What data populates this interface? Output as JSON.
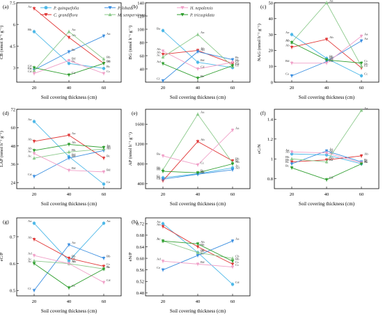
{
  "series": [
    {
      "name": "P. quinquefolia",
      "color": "#4db8e8",
      "marker": "circle"
    },
    {
      "name": "C. grandiflora",
      "color": "#e03535",
      "marker": "triangle-down"
    },
    {
      "name": "P. lobata",
      "color": "#3a8ee0",
      "marker": "triangle-down"
    },
    {
      "name": "M. sempervirens",
      "color": "#8bc98b",
      "marker": "triangle-up"
    },
    {
      "name": "H. nepalensis",
      "color": "#f0a0c8",
      "marker": "triangle-down"
    },
    {
      "name": "P. tricuspidata",
      "color": "#2e9e2e",
      "marker": "triangle-down"
    }
  ],
  "chart_data": [
    {
      "type": "line",
      "panel": "(a)",
      "ylabel": "CB (nmol h⁻¹ g⁻¹)",
      "xlabel": "Soil covering thickness (cm)",
      "x": [
        20,
        40,
        60
      ],
      "ylim": [
        2.0,
        7.5
      ],
      "yticks": [
        3.0,
        4.5,
        6.0,
        7.5
      ],
      "series": [
        {
          "values": [
            5.5,
            3.3,
            2.95
          ],
          "labels": [
            "Bb",
            "Bc",
            "Bc"
          ]
        },
        {
          "values": [
            7.1,
            5.1,
            3.3
          ],
          "labels": [
            "Aa",
            "Ab",
            "Bb"
          ]
        },
        {
          "values": [
            2.85,
            4.1,
            5.2
          ],
          "labels": [
            "Cc",
            "Bc",
            "Aa"
          ]
        },
        {
          "values": [
            2.8,
            5.5,
            3.6
          ],
          "labels": [
            "Cd",
            "Aa",
            "Bb"
          ]
        },
        {
          "values": [
            2.6,
            3.5,
            2.6
          ],
          "labels": [
            "Cd",
            "Bd",
            "Cc"
          ]
        },
        {
          "values": [
            3.0,
            2.5,
            3.3
          ],
          "labels": [
            "Cd",
            "Ca",
            "Bd"
          ]
        }
      ]
    },
    {
      "type": "line",
      "panel": "(b)",
      "ylabel": "BG (nmol h⁻¹ g⁻¹)",
      "xlabel": "Soil covering thickness (cm)",
      "x": [
        20,
        40,
        60
      ],
      "ylim": [
        20,
        140
      ],
      "yticks": [
        40,
        60,
        80,
        100,
        120,
        140
      ],
      "series": [
        {
          "values": [
            98,
            50,
            42
          ],
          "labels": [
            "Ba",
            "Bd",
            "Cc"
          ]
        },
        {
          "values": [
            62,
            68,
            48
          ],
          "labels": [
            "Ab",
            "Ab",
            "Cc"
          ]
        },
        {
          "values": [
            22,
            66,
            54
          ],
          "labels": [
            "Cf",
            "Ab",
            "Bc"
          ]
        },
        {
          "values": [
            58,
            92,
            44
          ],
          "labels": [
            "Ac",
            "Aa",
            "Cd"
          ]
        },
        {
          "values": [
            67,
            40,
            50
          ],
          "labels": [
            "Ab",
            "Cd",
            "Bb"
          ]
        },
        {
          "values": [
            48,
            26,
            45
          ],
          "labels": [
            "Ad",
            "Be",
            "Cc"
          ]
        }
      ]
    },
    {
      "type": "line",
      "panel": "(c)",
      "ylabel": "NAG (nmol h⁻¹ g⁻¹)",
      "xlabel": "Soil covering thickness (cm)",
      "x": [
        20,
        40,
        60
      ],
      "ylim": [
        0,
        50
      ],
      "yticks": [
        0,
        10,
        20,
        30,
        40,
        50
      ],
      "series": [
        {
          "values": [
            30,
            15,
            4
          ],
          "labels": [
            "Aa",
            "Bb",
            "Cc"
          ]
        },
        {
          "values": [
            22,
            27,
            9
          ],
          "labels": [
            "Ab",
            "Ab",
            "Cc"
          ]
        },
        {
          "values": [
            4,
            13,
            26
          ],
          "labels": [
            "Ce",
            "Bd",
            "Aa"
          ]
        },
        {
          "values": [
            25,
            50,
            10
          ],
          "labels": [
            "Ab",
            "Aa",
            "Bb"
          ]
        },
        {
          "values": [
            12,
            12,
            29
          ],
          "labels": [
            "Bd",
            "Bd",
            "Aa"
          ]
        },
        {
          "values": [
            25,
            14,
            12
          ],
          "labels": [
            "Ab",
            "Bb",
            "Cc"
          ]
        }
      ]
    },
    {
      "type": "line",
      "panel": "(d)",
      "ylabel": "LAP (nmol h⁻¹ g⁻¹)",
      "xlabel": "Soil covering thickness (cm)",
      "x": [
        20,
        40,
        60
      ],
      "ylim": [
        20,
        72
      ],
      "yticks": [
        24,
        36,
        48,
        60,
        72
      ],
      "series": [
        {
          "values": [
            64,
            41,
            23
          ],
          "labels": [
            "Aa",
            "Bd",
            "Ce"
          ]
        },
        {
          "values": [
            51,
            55,
            40
          ],
          "labels": [
            "Ab",
            "Aa",
            "Bc"
          ]
        },
        {
          "values": [
            28,
            40,
            45
          ],
          "labels": [
            "Cd",
            "Bd",
            "Ab"
          ]
        },
        {
          "values": [
            40,
            44,
            46
          ],
          "labels": [
            "Ac",
            "Bb",
            "Ab"
          ]
        },
        {
          "values": [
            43,
            32,
            31
          ],
          "labels": [
            "Ac",
            "Bd",
            "Bd"
          ]
        },
        {
          "values": [
            45,
            49,
            47
          ],
          "labels": [
            "Ab",
            "Ab",
            "Aa"
          ]
        }
      ]
    },
    {
      "type": "line",
      "panel": "(e)",
      "ylabel": "AP (nmol h⁻¹ g⁻¹)",
      "xlabel": "Soil covering thickness (cm)",
      "x": [
        20,
        40,
        60
      ],
      "ylim": [
        300,
        1900
      ],
      "yticks": [
        400,
        800,
        1200,
        1600
      ],
      "series": [
        {
          "values": [
            520,
            600,
            720
          ],
          "labels": [
            "Cc",
            "Bc",
            "Ac"
          ]
        },
        {
          "values": [
            460,
            1250,
            860
          ],
          "labels": [
            "Cd",
            "Ab",
            "Bb"
          ]
        },
        {
          "values": [
            490,
            590,
            680
          ],
          "labels": [
            "Be",
            "Bd",
            "Ad"
          ]
        },
        {
          "values": [
            680,
            1800,
            820
          ],
          "labels": [
            "Bb",
            "Aa",
            "Bc"
          ]
        },
        {
          "values": [
            960,
            780,
            1480
          ],
          "labels": [
            "Ba",
            "Cc",
            "Aa"
          ]
        },
        {
          "values": [
            650,
            620,
            800
          ],
          "labels": [
            "Bb",
            "Bc",
            "Ab"
          ]
        }
      ]
    },
    {
      "type": "line",
      "panel": "(f)",
      "ylabel": "eC/N",
      "xlabel": "Soil covering thickness (cm)",
      "x": [
        20,
        40,
        60
      ],
      "ylim": [
        0.7,
        1.5
      ],
      "yticks": [
        0.8,
        1.0,
        1.2,
        1.4
      ],
      "series": [
        {
          "values": [
            1.05,
            1.04,
            0.95
          ],
          "labels": [
            "Ab",
            "Ab",
            "Bc"
          ]
        },
        {
          "values": [
            0.97,
            0.99,
            1.03
          ],
          "labels": [
            "Bb",
            "Ab",
            "Ab"
          ]
        },
        {
          "values": [
            0.95,
            1.08,
            0.97
          ],
          "labels": [
            "Bc",
            "Aa",
            "Bc"
          ]
        },
        {
          "values": [
            1.0,
            0.97,
            1.49
          ],
          "labels": [
            "Bb",
            "Ba",
            "Aa"
          ]
        },
        {
          "values": [
            1.07,
            1.06,
            0.96
          ],
          "labels": [
            "Aa",
            "Aa",
            "Bc"
          ]
        },
        {
          "values": [
            0.91,
            0.79,
            0.95
          ],
          "labels": [
            "Bc",
            "Cd",
            "Ac"
          ]
        }
      ]
    },
    {
      "type": "line",
      "panel": "(g)",
      "ylabel": "eC/P",
      "xlabel": "Soil covering thickness (cm)",
      "x": [
        20,
        40,
        60
      ],
      "ylim": [
        0.48,
        0.77
      ],
      "yticks": [
        0.5,
        0.6,
        0.7
      ],
      "series": [
        {
          "values": [
            0.75,
            0.61,
            0.75
          ],
          "labels": [
            "Aa",
            "Bb",
            "Aa"
          ]
        },
        {
          "values": [
            0.69,
            0.62,
            0.59
          ],
          "labels": [
            "Ab",
            "Bb",
            "Cc"
          ]
        },
        {
          "values": [
            0.5,
            0.67,
            0.62
          ],
          "labels": [
            "Cf",
            "Aa",
            "Bb"
          ]
        },
        {
          "values": [
            0.61,
            0.6,
            0.58
          ],
          "labels": [
            "Ac",
            "Ab",
            "Bc"
          ]
        },
        {
          "values": [
            0.63,
            0.6,
            0.53
          ],
          "labels": [
            "Ad",
            "Ab",
            "Cd"
          ]
        },
        {
          "values": [
            0.6,
            0.51,
            0.58
          ],
          "labels": [
            "Ac",
            "Cc",
            "Bc"
          ]
        }
      ]
    },
    {
      "type": "line",
      "panel": "(h)",
      "ylabel": "eN/P",
      "xlabel": "Soil covering thickness (cm)",
      "x": [
        20,
        40,
        60
      ],
      "ylim": [
        0.47,
        0.74
      ],
      "yticks": [
        0.48,
        0.52,
        0.56,
        0.6,
        0.64,
        0.68,
        0.72
      ],
      "series": [
        {
          "values": [
            0.72,
            0.62,
            0.51
          ],
          "labels": [
            "Aa",
            "Bb",
            "Cd"
          ]
        },
        {
          "values": [
            0.71,
            0.64,
            0.58
          ],
          "labels": [
            "Ab",
            "Bb",
            "Cc"
          ]
        },
        {
          "values": [
            0.56,
            0.61,
            0.66
          ],
          "labels": [
            "Ce",
            "Bc",
            "Aa"
          ]
        },
        {
          "values": [
            0.66,
            0.62,
            0.6
          ],
          "labels": [
            "Ac",
            "Bb",
            "Cb"
          ]
        },
        {
          "values": [
            0.59,
            0.58,
            0.57
          ],
          "labels": [
            "Ad",
            "Bd",
            "Cc"
          ]
        },
        {
          "values": [
            0.66,
            0.65,
            0.59
          ],
          "labels": [
            "Ac",
            "Ab",
            "Bb"
          ]
        }
      ]
    }
  ]
}
